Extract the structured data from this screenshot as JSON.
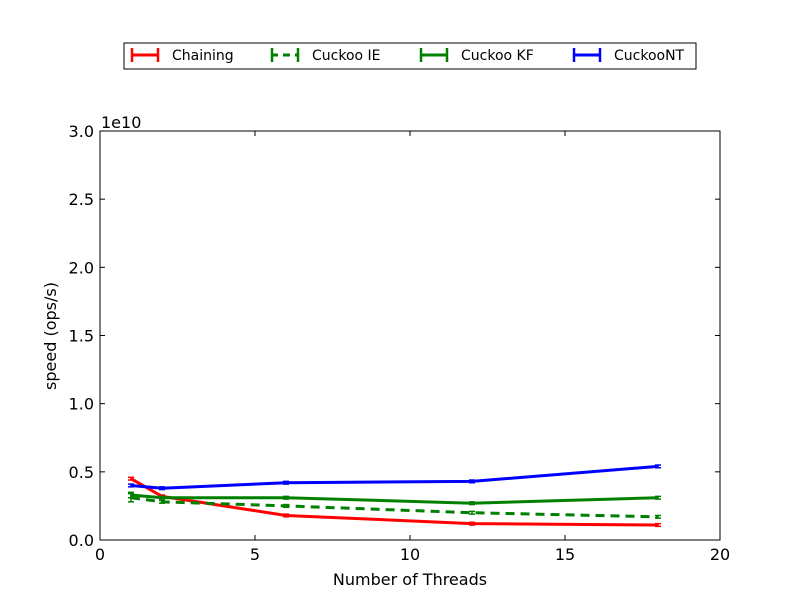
{
  "chart_data": {
    "type": "line",
    "title": "",
    "xlabel": "Number of Threads",
    "ylabel": "speed (ops/s)",
    "y_scale_label": "1e10",
    "xlim": [
      0,
      20
    ],
    "ylim": [
      0.0,
      3.0
    ],
    "x_ticks": [
      0,
      5,
      10,
      15,
      20
    ],
    "x_tick_labels": [
      "0",
      "5",
      "10",
      "15",
      "20"
    ],
    "y_ticks": [
      0.0,
      0.5,
      1.0,
      1.5,
      2.0,
      2.5,
      3.0
    ],
    "y_tick_labels": [
      "0.0",
      "0.5",
      "1.0",
      "1.5",
      "2.0",
      "2.5",
      "3.0"
    ],
    "grid": false,
    "legend_position": "top-center, above plot",
    "x": [
      1,
      2,
      6,
      12,
      18
    ],
    "series": [
      {
        "name": "Chaining",
        "color": "#ff0000",
        "dashed": false,
        "values": [
          0.45,
          0.32,
          0.18,
          0.12,
          0.11
        ],
        "err": [
          0.01,
          0.01,
          0.01,
          0.01,
          0.01
        ]
      },
      {
        "name": "Cuckoo IE",
        "color": "#008000",
        "dashed": true,
        "values": [
          0.31,
          0.28,
          0.25,
          0.2,
          0.17
        ],
        "err": [
          0.03,
          0.01,
          0.01,
          0.01,
          0.01
        ]
      },
      {
        "name": "Cuckoo KF",
        "color": "#008000",
        "dashed": false,
        "values": [
          0.33,
          0.31,
          0.31,
          0.27,
          0.31
        ],
        "err": [
          0.02,
          0.01,
          0.01,
          0.01,
          0.01
        ]
      },
      {
        "name": "CuckooNT",
        "color": "#0000ff",
        "dashed": false,
        "values": [
          0.4,
          0.38,
          0.42,
          0.43,
          0.54
        ],
        "err": [
          0.01,
          0.01,
          0.01,
          0.01,
          0.01
        ]
      }
    ]
  }
}
